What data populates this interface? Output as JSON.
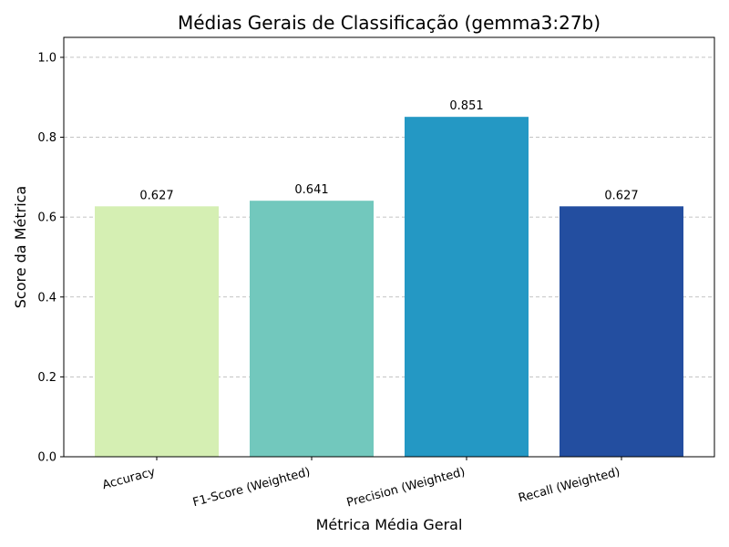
{
  "chart_data": {
    "type": "bar",
    "title": "Médias Gerais de Classificação (gemma3:27b)",
    "xlabel": "Métrica Média Geral",
    "ylabel": "Score da Métrica",
    "categories": [
      "Accuracy",
      "F1-Score (Weighted)",
      "Precision (Weighted)",
      "Recall (Weighted)"
    ],
    "values": [
      0.627,
      0.641,
      0.851,
      0.627
    ],
    "value_labels": [
      "0.627",
      "0.641",
      "0.851",
      "0.627"
    ],
    "colors": [
      "#d5efb3",
      "#72c8bd",
      "#2498c4",
      "#234ea0"
    ],
    "ylim": [
      0,
      1.05
    ],
    "yticks": [
      0.0,
      0.2,
      0.4,
      0.6,
      0.8,
      1.0
    ],
    "ytick_labels": [
      "0.0",
      "0.2",
      "0.4",
      "0.6",
      "0.8",
      "1.0"
    ],
    "grid": "y-dashed"
  }
}
